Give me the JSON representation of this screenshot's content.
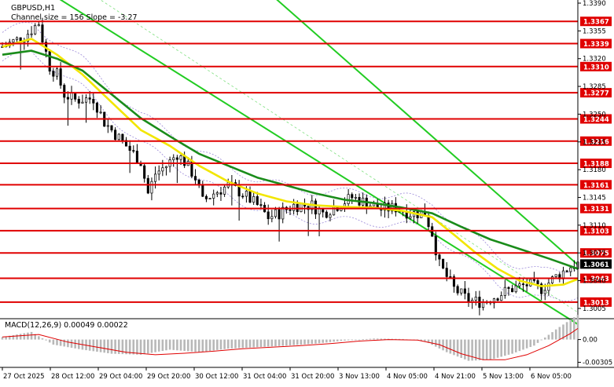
{
  "header": {
    "symbol_label": "GBPUSD,H1",
    "channel_label": "Channel size = 156 Slope = -3.27"
  },
  "macd_label": "MACD(12,26,9) 0.00049 0.00022",
  "chart_data": {
    "type": "candlestick",
    "price_axis": {
      "range": [
        1.2995,
        1.339
      ],
      "ticks": [
        "1.3390",
        "1.3355",
        "1.3320",
        "1.3285",
        "1.3250",
        "1.3215",
        "1.3180",
        "1.3145",
        "1.3110",
        "1.3075",
        "1.3040",
        "1.3005"
      ]
    },
    "current_price": "1.3061",
    "levels": [
      "1.3367",
      "1.3339",
      "1.3310",
      "1.3277",
      "1.3244",
      "1.3216",
      "1.3188",
      "1.3161",
      "1.3131",
      "1.3103",
      "1.3075",
      "1.3043",
      "1.3013"
    ],
    "x_labels": [
      "27 Oct 2025",
      "28 Oct 12:00",
      "29 Oct 04:00",
      "29 Oct 20:00",
      "30 Oct 12:00",
      "31 Oct 04:00",
      "31 Oct 20:00",
      "3 Nov 13:00",
      "4 Nov 05:00",
      "4 Nov 21:00",
      "5 Nov 13:00",
      "6 Nov 05:00"
    ],
    "close_path": [
      [
        0,
        1.3335
      ],
      [
        6,
        1.3348
      ],
      [
        10,
        1.3365
      ],
      [
        11,
        1.3345
      ],
      [
        13,
        1.331
      ],
      [
        15,
        1.33
      ],
      [
        17,
        1.3275
      ],
      [
        20,
        1.3268
      ],
      [
        25,
        1.327
      ],
      [
        28,
        1.324
      ],
      [
        32,
        1.322
      ],
      [
        35,
        1.3205
      ],
      [
        38,
        1.319
      ],
      [
        40,
        1.315
      ],
      [
        42,
        1.3175
      ],
      [
        45,
        1.3185
      ],
      [
        48,
        1.32
      ],
      [
        50,
        1.319
      ],
      [
        53,
        1.317
      ],
      [
        55,
        1.314
      ],
      [
        58,
        1.315
      ],
      [
        62,
        1.316
      ],
      [
        66,
        1.315
      ],
      [
        70,
        1.3135
      ],
      [
        73,
        1.312
      ],
      [
        76,
        1.3125
      ],
      [
        80,
        1.3135
      ],
      [
        85,
        1.3135
      ],
      [
        88,
        1.3125
      ],
      [
        92,
        1.3135
      ],
      [
        96,
        1.3145
      ],
      [
        100,
        1.3138
      ],
      [
        104,
        1.313
      ],
      [
        108,
        1.3132
      ],
      [
        112,
        1.3125
      ],
      [
        116,
        1.3125
      ],
      [
        118,
        1.31
      ],
      [
        120,
        1.306
      ],
      [
        124,
        1.303
      ],
      [
        128,
        1.3015
      ],
      [
        132,
        1.3013
      ],
      [
        136,
        1.3022
      ],
      [
        140,
        1.303
      ],
      [
        144,
        1.3035
      ],
      [
        148,
        1.303
      ],
      [
        152,
        1.3045
      ],
      [
        156,
        1.3058
      ],
      [
        158,
        1.3061
      ]
    ],
    "ema_slow_path": [
      [
        0,
        1.3325
      ],
      [
        8,
        1.333
      ],
      [
        15,
        1.332
      ],
      [
        22,
        1.3305
      ],
      [
        30,
        1.3275
      ],
      [
        38,
        1.3245
      ],
      [
        46,
        1.3222
      ],
      [
        54,
        1.32
      ],
      [
        62,
        1.3185
      ],
      [
        70,
        1.317
      ],
      [
        78,
        1.316
      ],
      [
        86,
        1.315
      ],
      [
        94,
        1.3142
      ],
      [
        102,
        1.3138
      ],
      [
        110,
        1.3132
      ],
      [
        118,
        1.3125
      ],
      [
        126,
        1.3108
      ],
      [
        134,
        1.3092
      ],
      [
        142,
        1.308
      ],
      [
        150,
        1.3068
      ],
      [
        158,
        1.3055
      ]
    ],
    "ema_fast_path": [
      [
        0,
        1.3335
      ],
      [
        8,
        1.3345
      ],
      [
        15,
        1.3325
      ],
      [
        22,
        1.33
      ],
      [
        30,
        1.3265
      ],
      [
        38,
        1.323
      ],
      [
        46,
        1.321
      ],
      [
        54,
        1.3185
      ],
      [
        62,
        1.3165
      ],
      [
        70,
        1.315
      ],
      [
        78,
        1.314
      ],
      [
        86,
        1.3135
      ],
      [
        94,
        1.3133
      ],
      [
        102,
        1.3132
      ],
      [
        110,
        1.3128
      ],
      [
        118,
        1.312
      ],
      [
        124,
        1.3098
      ],
      [
        130,
        1.3075
      ],
      [
        136,
        1.3055
      ],
      [
        142,
        1.304
      ],
      [
        148,
        1.3033
      ],
      [
        154,
        1.3035
      ],
      [
        158,
        1.3042
      ]
    ],
    "channel_lines": [
      {
        "from": [
          14,
          1.34
        ],
        "to": [
          158,
          1.2985
        ]
      },
      {
        "from": [
          74,
          1.34
        ],
        "to": [
          158,
          1.306
        ]
      },
      {
        "from": [
          25,
          1.34
        ],
        "to": [
          158,
          1.3
        ]
      }
    ],
    "macd": {
      "range": [
        -0.00055,
        0.00035
      ],
      "ticks": [
        "0.00",
        "-0.00305"
      ],
      "histogram_path": [
        [
          0,
          5e-05
        ],
        [
          8,
          0.00015
        ],
        [
          14,
          -0.0001
        ],
        [
          22,
          -0.0002
        ],
        [
          30,
          -0.00028
        ],
        [
          38,
          -0.0003
        ],
        [
          46,
          -0.0002
        ],
        [
          54,
          -0.00025
        ],
        [
          62,
          -0.00018
        ],
        [
          70,
          -0.00015
        ],
        [
          78,
          -0.00012
        ],
        [
          86,
          -8e-05
        ],
        [
          94,
          -2e-05
        ],
        [
          102,
          2e-05
        ],
        [
          110,
          1e-05
        ],
        [
          116,
          -3e-05
        ],
        [
          122,
          -0.00025
        ],
        [
          128,
          -0.00042
        ],
        [
          134,
          -0.0004
        ],
        [
          140,
          -0.00028
        ],
        [
          146,
          -0.00012
        ],
        [
          152,
          0.0002
        ],
        [
          158,
          0.00049
        ]
      ],
      "signal_path": [
        [
          0,
          5e-05
        ],
        [
          10,
          0.0001
        ],
        [
          18,
          -5e-05
        ],
        [
          26,
          -0.00015
        ],
        [
          34,
          -0.00025
        ],
        [
          42,
          -0.0003
        ],
        [
          50,
          -0.00027
        ],
        [
          58,
          -0.00023
        ],
        [
          66,
          -0.00018
        ],
        [
          74,
          -0.00015
        ],
        [
          82,
          -0.00012
        ],
        [
          90,
          -8e-05
        ],
        [
          98,
          -3e-05
        ],
        [
          106,
          0.0
        ],
        [
          114,
          -1e-05
        ],
        [
          120,
          -0.0001
        ],
        [
          126,
          -0.00028
        ],
        [
          132,
          -0.0004
        ],
        [
          138,
          -0.0004
        ],
        [
          144,
          -0.0003
        ],
        [
          150,
          -0.00012
        ],
        [
          156,
          0.00012
        ],
        [
          158,
          0.00022
        ]
      ]
    },
    "colors": {
      "candle": "#000000",
      "level_line": "#e00000",
      "ema_fast": "#f2e600",
      "ema_slow": "#1a8c1a",
      "channel": "#22cc22",
      "envelope": "#9a88d8",
      "macd_hist": "#b8b8b8",
      "macd_signal": "#e00000"
    }
  }
}
